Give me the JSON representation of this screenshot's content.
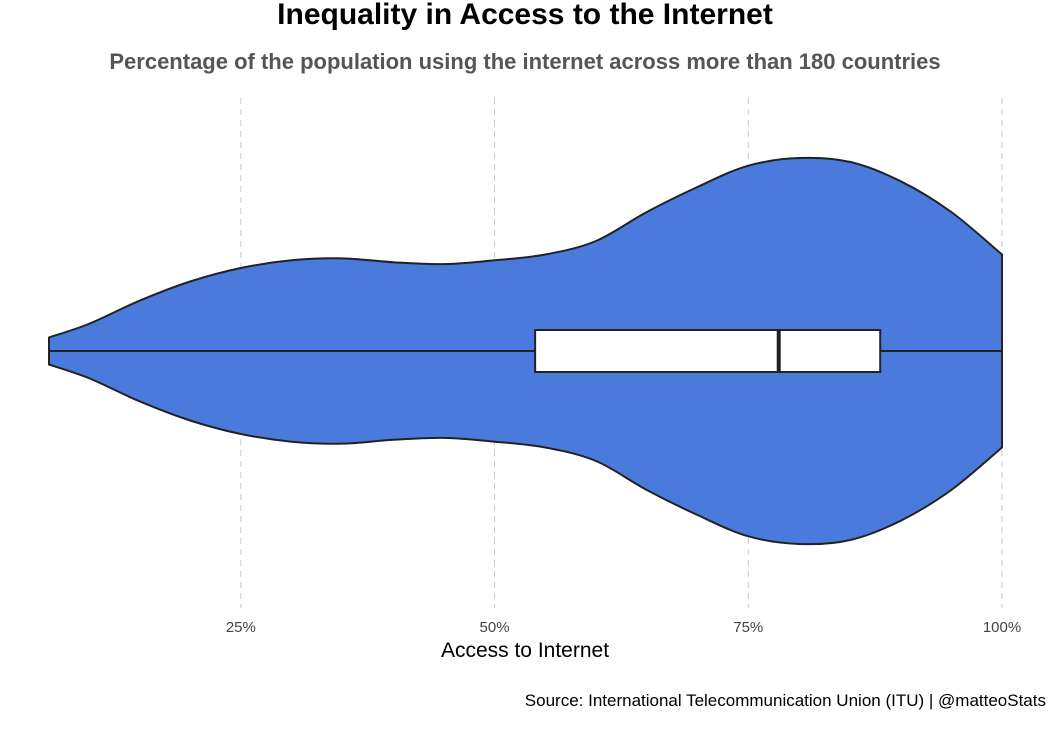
{
  "chart_data": {
    "type": "violin",
    "title": "Inequality in Access to the Internet",
    "subtitle": "Percentage of the population using the internet across more than 180 countries",
    "xlabel": "Access to Internet",
    "ylabel": "",
    "caption": "Source: International Telecommunication Union (ITU) | @matteoStats",
    "xlim": [
      6,
      100
    ],
    "x_ticks": [
      25,
      50,
      75,
      100
    ],
    "x_tick_labels": [
      "25%",
      "50%",
      "75%",
      "100%"
    ],
    "grid": "vertical dashed lines at major ticks",
    "legend": "none",
    "colors": {
      "violin_fill": "#4a7bdc",
      "outline": "#222222",
      "box_fill": "#ffffff",
      "grid": "#c8c8c8"
    },
    "density": {
      "x": [
        6.1,
        10,
        15,
        20,
        25,
        30,
        35,
        40,
        45,
        50,
        55,
        60,
        65,
        70,
        75,
        80,
        85,
        90,
        95,
        100
      ],
      "relative_density": [
        0.07,
        0.14,
        0.26,
        0.36,
        0.43,
        0.47,
        0.48,
        0.46,
        0.45,
        0.47,
        0.5,
        0.57,
        0.72,
        0.85,
        0.96,
        1.0,
        0.98,
        0.88,
        0.72,
        0.5
      ]
    },
    "boxplot": {
      "whisker_low": 6.1,
      "q1": 54,
      "median": 78,
      "q3": 88,
      "whisker_high": 100
    }
  }
}
